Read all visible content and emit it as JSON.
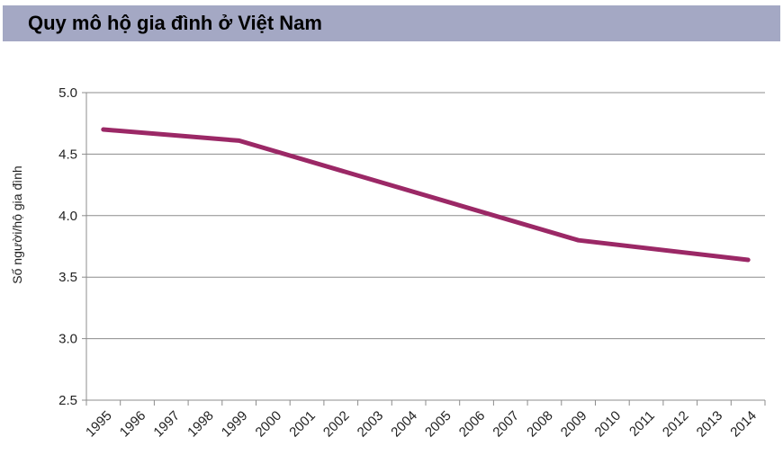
{
  "title": "Quy mô hộ gia đình ở Việt Nam",
  "chart_data": {
    "type": "line",
    "title": "Quy mô hộ gia đình ở Việt Nam",
    "ylabel": "Số người/hộ gia đình",
    "xlabel": "",
    "ylim": [
      2.5,
      5.0
    ],
    "yticks": [
      "5.0",
      "4.5",
      "4.0",
      "3.5",
      "3.0",
      "2.5"
    ],
    "categories": [
      "1995",
      "1996",
      "1997",
      "1998",
      "1999",
      "2000",
      "2001",
      "2002",
      "2003",
      "2004",
      "2005",
      "2006",
      "2007",
      "2008",
      "2009",
      "2010",
      "2011",
      "2012",
      "2013",
      "2014"
    ],
    "points": [
      {
        "x": "1995",
        "y": 4.7
      },
      {
        "x": "1999",
        "y": 4.61
      },
      {
        "x": "2009",
        "y": 3.8
      },
      {
        "x": "2014",
        "y": 3.64
      }
    ],
    "grid": true,
    "line_color": "#9b2866"
  }
}
